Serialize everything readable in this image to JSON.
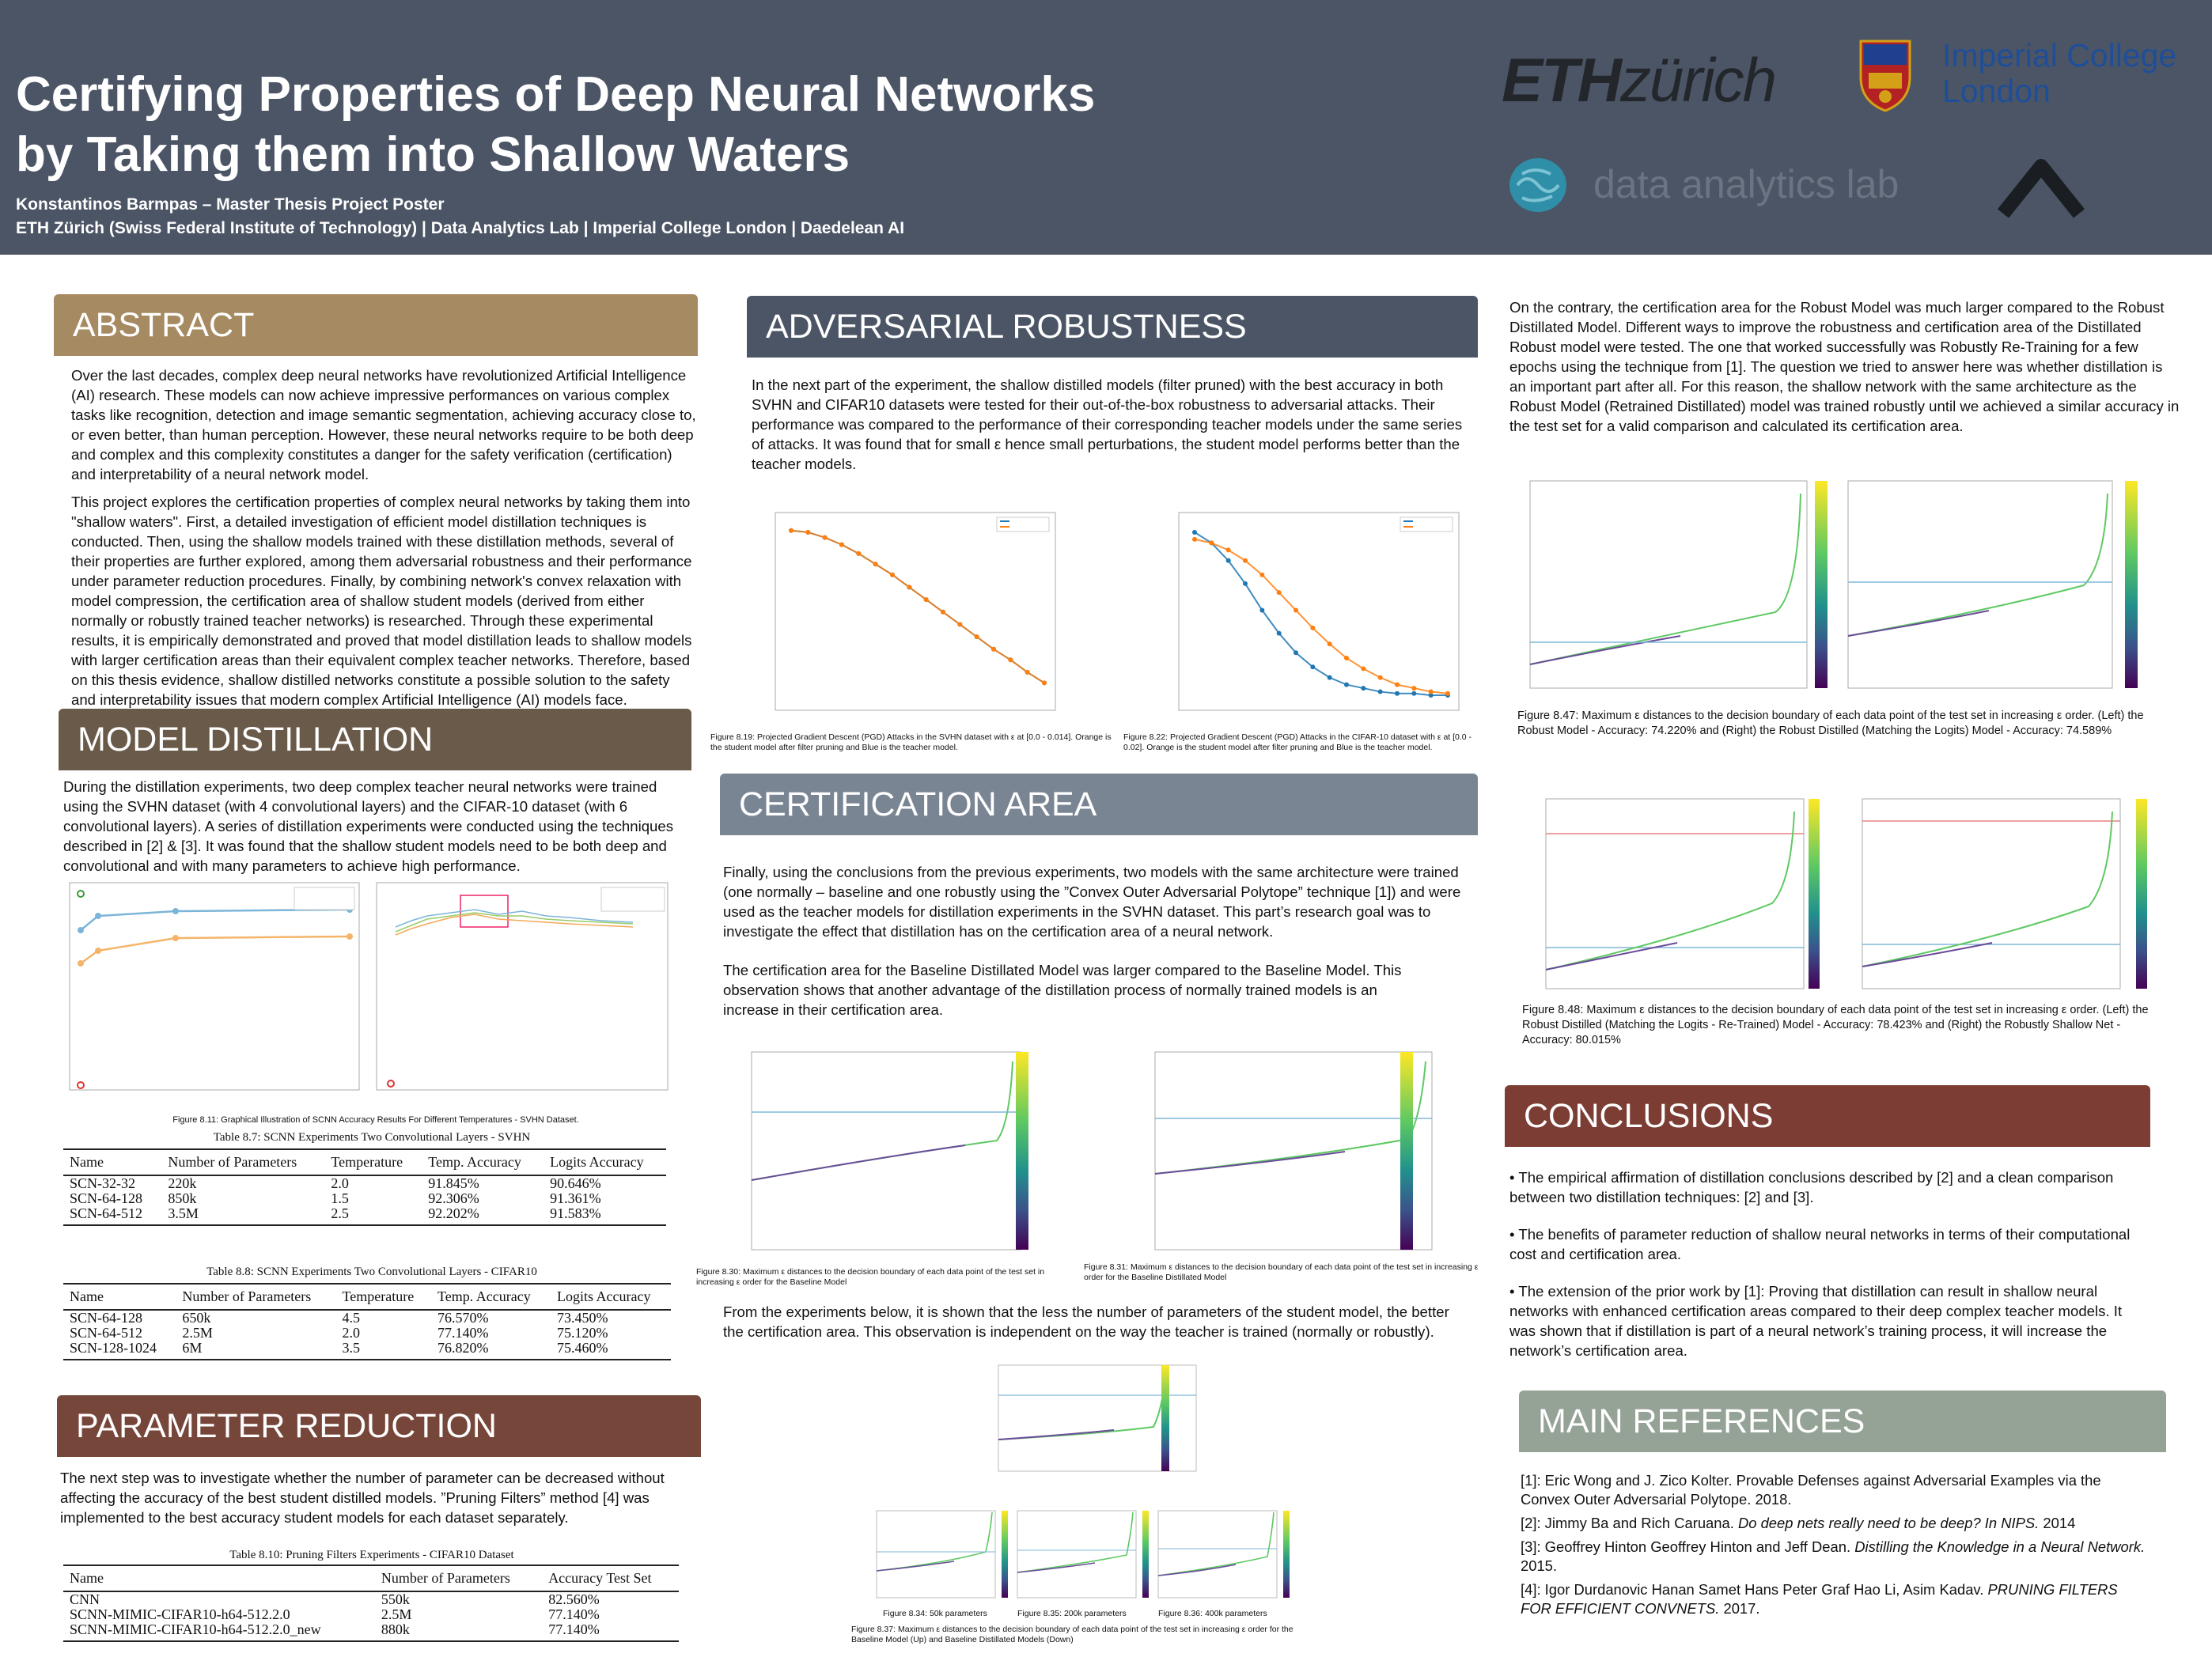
{
  "header": {
    "title_line1": "Certifying Properties of Deep Neural Networks",
    "title_line2": "by Taking them into Shallow Waters",
    "author": "Konstantinos Barmpas – Master Thesis Project Poster",
    "affiliations": "ETH Zürich (Swiss Federal Institute of Technology) | Data Analytics Lab | Imperial College London | Daedelean AI",
    "logos": {
      "eth_bold": "ETH",
      "eth_light": "zürich",
      "imperial_line1": "Imperial College",
      "imperial_line2": "London",
      "dal": "data analytics lab",
      "colors": {
        "header_bg": "#4b5565",
        "imperial_blue": "#1f4e99"
      }
    }
  },
  "abstract": {
    "heading": "ABSTRACT",
    "p1": "Over the last decades, complex deep neural networks have revolutionized Artificial Intelligence (AI) research. These models can now achieve impressive performances on various complex tasks like recognition, detection and image semantic segmentation, achieving accuracy close to, or even better, than human perception. However, these neural networks require to be both deep and complex and this complexity constitutes a danger for the safety verification (certification) and interpretability of a neural network model.",
    "p2": "This project explores the certification properties of complex neural networks by taking them into \"shallow waters\". First, a detailed investigation of efficient model distillation techniques is conducted. Then, using the shallow models trained with these distillation methods, several of their properties are further explored, among them adversarial robustness and their performance under parameter reduction procedures. Finally, by combining network's convex relaxation with model compression, the certification area of shallow student models (derived from either normally or robustly trained teacher networks) is researched. Through these experimental results, it is empirically demonstrated and proved that model distillation leads to shallow models with larger certification areas than their equivalent complex teacher networks. Therefore, based on this thesis evidence, shallow distilled networks constitute a possible solution to the safety and interpretability issues that modern complex Artificial Intelligence (AI) models face."
  },
  "model_distillation": {
    "heading": "MODEL DISTILLATION",
    "text": "During the distillation experiments, two deep complex teacher neural networks were trained using the SVHN dataset (with 4 convolutional layers) and the CIFAR-10 dataset (with 6 convolutional layers). A series of distillation experiments were conducted using the techniques described in [2] & [3]. It was found that the shallow student models need to be both deep and convolutional and with many parameters to achieve high performance.",
    "fig_caption": "Figure 8.11: Graphical Illustration of SCNN Accuracy Results For Different Temperatures - SVHN Dataset.",
    "table1": {
      "caption": "Table 8.7: SCNN Experiments Two Convolutional Layers - SVHN",
      "columns": [
        "Name",
        "Number of Parameters",
        "Temperature",
        "Temp. Accuracy",
        "Logits Accuracy"
      ],
      "rows": [
        [
          "SCN-32-32",
          "220k",
          "2.0",
          "91.845%",
          "90.646%"
        ],
        [
          "SCN-64-128",
          "850k",
          "1.5",
          "92.306%",
          "91.361%"
        ],
        [
          "SCN-64-512",
          "3.5M",
          "2.5",
          "92.202%",
          "91.583%"
        ]
      ]
    },
    "table2": {
      "caption": "Table 8.8: SCNN Experiments Two Convolutional Layers - CIFAR10",
      "columns": [
        "Name",
        "Number of Parameters",
        "Temperature",
        "Temp. Accuracy",
        "Logits Accuracy"
      ],
      "rows": [
        [
          "SCN-64-128",
          "650k",
          "4.5",
          "76.570%",
          "73.450%"
        ],
        [
          "SCN-64-512",
          "2.5M",
          "2.0",
          "77.140%",
          "75.120%"
        ],
        [
          "SCN-128-1024",
          "6M",
          "3.5",
          "76.820%",
          "75.460%"
        ]
      ]
    }
  },
  "parameter_reduction": {
    "heading": "PARAMETER REDUCTION",
    "text": "The next step was to investigate whether the number of parameter can be decreased without affecting  the accuracy of the best student distilled models. ”Pruning Filters” method [4] was implemented to the best accuracy student models for each dataset separately.",
    "table": {
      "caption": "Table 8.10: Pruning Filters Experiments - CIFAR10 Dataset",
      "columns": [
        "Name",
        "Number of Parameters",
        "Accuracy Test Set"
      ],
      "rows": [
        [
          "CNN",
          "550k",
          "82.560%"
        ],
        [
          "SCNN-MIMIC-CIFAR10-h64-512.2.0",
          "2.5M",
          "77.140%"
        ],
        [
          "SCNN-MIMIC-CIFAR10-h64-512.2.0_new",
          "880k",
          "77.140%"
        ]
      ]
    }
  },
  "adversarial": {
    "heading": "ADVERSARIAL ROBUSTNESS",
    "text": "In the next part of the experiment, the shallow distilled models (filter pruned) with the best accuracy in both SVHN and CIFAR10 datasets were tested for their out-of-the-box robustness to adversarial attacks. Their performance was compared to the performance of their corresponding teacher models under the same series of attacks. It was found that for small ε hence small perturbations, the student model performs better than the teacher models.",
    "cap_819": "Figure 8.19: Projected Gradient Descent (PGD) Attacks in the SVHN dataset with ε at [0.0 - 0.014]. Orange is the student model after filter pruning and Blue is the teacher model.",
    "cap_822": "Figure 8.22: Projected Gradient Descent (PGD) Attacks in the CIFAR-10 dataset with ε at [0.0 - 0.02]. Orange is the student model after filter pruning and Blue is the teacher model."
  },
  "certification": {
    "heading": "CERTIFICATION AREA",
    "p1": "Finally, using the conclusions from the previous experiments, two models with the same architecture were trained (one normally – baseline and one robustly using the ”Convex Outer Adversarial Polytope” technique [1]) and were used as the teacher models for distillation experiments in the SVHN dataset. This part’s research goal was to investigate the effect that distillation has on the certification area of a neural network.",
    "p2": "The certification area for the Baseline Distillated Model was larger compared to the Baseline Model. This observation shows that another advantage of the distillation process of normally trained models is an increase in their certification area.",
    "cap_830": "Figure 8.30: Maximum ε distances to the decision boundary of each data point of the test set in increasing ε order for the Baseline Model",
    "cap_831": "Figure 8.31: Maximum ε distances to the decision boundary of each data point of the test set in increasing ε order for the Baseline Distillated Model",
    "p3": "From the experiments below, it is shown that the less the number of parameters of the student model, the better the certification area. This observation is independent on the way the teacher is trained (normally or robustly).",
    "cap_834": "Figure 8.34: 50k parameters",
    "cap_835": "Figure 8.35: 200k parameters",
    "cap_836": "Figure 8.36: 400k parameters",
    "cap_837": "Figure 8.37: Maximum ε distances to the decision boundary of each data point of the test set in increasing ε order for the Baseline Model (Up) and Baseline Distillated Models (Down)"
  },
  "right": {
    "p1": "On the contrary, the certification area for the Robust Model was much larger compared to the Robust Distillated Model. Different ways to improve the robustness and certification area of the Distillated Robust model were tested. The one that worked successfully was Robustly Re-Training for a few epochs using the technique from [1]. The question we tried to answer here was whether distillation is an important part after all. For this reason, the shallow network with the same architecture as the Robust Model (Retrained Distillated) model was trained robustly until we achieved a similar accuracy in the test set for a valid comparison and calculated its certification area.",
    "cap_847": "Figure 8.47: Maximum ε distances to the decision boundary of each data point of the test set in increasing ε order. (Left) the Robust Model - Accuracy: 74.220% and (Right) the Robust Distilled (Matching the Logits) Model - Accuracy: 74.589%",
    "cap_848": "Figure 8.48: Maximum ε distances to the decision boundary of each data point of the test set in increasing ε order. (Left) the Robust Distilled (Matching the Logits - Re-Trained) Model - Accuracy: 78.423% and (Right) the Robustly Shallow Net - Accuracy: 80.015%"
  },
  "conclusions": {
    "heading": "CONCLUSIONS",
    "b1": "• The empirical affirmation of distillation conclusions described by [2] and a clean comparison between two distillation techniques: [2] and [3].",
    "b2": "• The benefits of parameter reduction of shallow neural networks in terms of their computational cost and certification area.",
    "b3": "• The extension of the prior work by [1]: Proving that distillation can result in shallow neural networks with enhanced certification areas compared to their deep complex teacher models. It was shown that if distillation is part of a neural network’s training process, it will increase the network’s certification area."
  },
  "references": {
    "heading": "MAIN REFERENCES",
    "r1": "[1]: Eric Wong and J. Zico Kolter. Provable Defenses against Adversarial Examples via the Convex Outer Adversarial Polytope. 2018.",
    "r2a": "[2]: Jimmy Ba and Rich Caruana. ",
    "r2b": "Do deep nets really need to be deep? In NIPS.",
    "r2c": " 2014",
    "r3a": "[3]: Geoffrey Hinton Geoffrey Hinton and Jeff Dean. ",
    "r3b": "Distilling the Knowledge in a Neural Network.",
    "r3c": " 2015.",
    "r4a": "[4]: Igor Durdanovic Hanan Samet Hans Peter Graf Hao Li, Asim Kadav. ",
    "r4b": "PRUNING FILTERS FOR EFFICIENT CONVNETS.",
    "r4c": " 2017."
  },
  "chart_data": [
    {
      "type": "line",
      "title": "",
      "x": [
        0,
        1,
        2,
        3,
        4,
        5,
        6,
        7,
        8,
        9,
        10,
        11,
        12,
        13,
        14,
        15
      ],
      "series": [
        {
          "values": [
            0.97,
            0.96,
            0.93,
            0.89,
            0.84,
            0.78,
            0.72,
            0.65,
            0.58,
            0.51,
            0.44,
            0.37,
            0.3,
            0.24,
            0.17,
            0.11
          ],
          "color": "#1f77b4"
        },
        {
          "values": [
            0.97,
            0.96,
            0.93,
            0.89,
            0.84,
            0.78,
            0.72,
            0.65,
            0.58,
            0.51,
            0.44,
            0.37,
            0.3,
            0.24,
            0.17,
            0.11
          ],
          "color": "#ff7f0e"
        }
      ]
    },
    {
      "type": "line",
      "title": "",
      "x": [
        0,
        1,
        2,
        3,
        4,
        5,
        6,
        7,
        8,
        9,
        10,
        11,
        12,
        13,
        14,
        15
      ],
      "series": [
        {
          "values": [
            0.96,
            0.9,
            0.8,
            0.67,
            0.52,
            0.39,
            0.28,
            0.2,
            0.14,
            0.1,
            0.08,
            0.06,
            0.05,
            0.05,
            0.04,
            0.04
          ],
          "color": "#1f77b4"
        },
        {
          "values": [
            0.92,
            0.9,
            0.86,
            0.8,
            0.72,
            0.62,
            0.52,
            0.42,
            0.33,
            0.25,
            0.19,
            0.14,
            0.1,
            0.08,
            0.06,
            0.05
          ],
          "color": "#ff7f0e"
        }
      ]
    }
  ]
}
